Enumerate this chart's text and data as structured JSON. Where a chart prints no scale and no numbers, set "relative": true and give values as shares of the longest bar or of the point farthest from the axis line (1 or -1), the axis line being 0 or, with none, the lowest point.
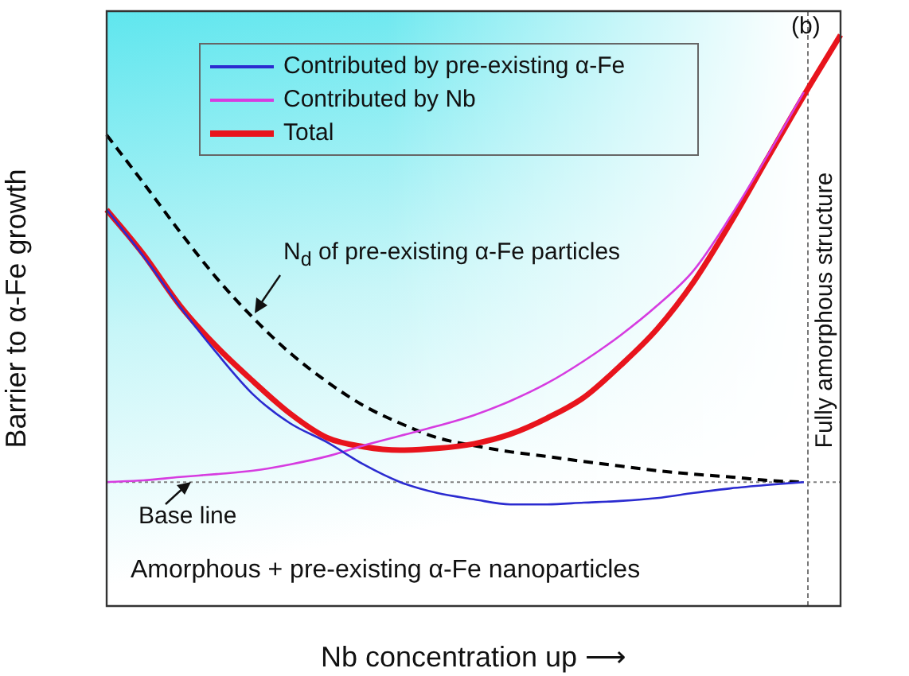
{
  "chart_data": {
    "type": "line",
    "relative": true,
    "xlabel": "Nb concentration up ⟶",
    "ylabel": "Barrier to α-Fe growth",
    "categories": [
      null,
      null,
      null,
      null,
      null,
      null,
      null,
      null,
      null,
      null,
      null,
      null,
      null,
      null,
      null,
      null,
      null,
      null,
      null,
      null,
      null
    ],
    "series": [
      {
        "name": "Contributed by pre-existing α-Fe",
        "color": "#2b2bd0",
        "values": [
          0.694,
          0.613,
          0.524,
          0.443,
          0.37,
          0.32,
          0.287,
          0.248,
          0.217,
          0.198,
          0.187,
          0.178,
          0.178,
          0.181,
          0.184,
          0.189,
          0.198,
          0.206,
          0.212,
          0.217,
          null
        ]
      },
      {
        "name": "Contributed by Nb",
        "color": "#d63ce0",
        "values": [
          0.217,
          0.22,
          0.226,
          0.231,
          0.237,
          0.248,
          0.262,
          0.281,
          0.298,
          0.315,
          0.334,
          0.359,
          0.39,
          0.429,
          0.474,
          0.526,
          0.588,
          0.682,
          0.788,
          0.9,
          null
        ]
      },
      {
        "name": "Total",
        "color": "#e8141c",
        "values": [
          0.694,
          0.616,
          0.526,
          0.454,
          0.393,
          0.337,
          0.295,
          0.279,
          0.273,
          0.276,
          0.284,
          0.301,
          0.329,
          0.365,
          0.421,
          0.485,
          0.568,
          0.671,
          0.783,
          0.894,
          1.0
        ]
      },
      {
        "color": "#000000",
        "line_style": "dashed",
        "values": [
          0.825,
          0.741,
          0.655,
          0.574,
          0.504,
          0.443,
          0.393,
          0.351,
          0.32,
          0.295,
          0.281,
          0.27,
          0.262,
          0.253,
          0.245,
          0.237,
          0.231,
          0.226,
          0.22,
          0.217,
          null
        ]
      }
    ],
    "ref_lines": [
      {
        "axis": "y",
        "value": 0.217,
        "label": "Base line",
        "color": "#808080",
        "line_style": "dotted"
      }
    ],
    "annotations": [
      "(b)",
      "N$_{d}$ of pre-existing α-Fe particles",
      "Amorphous + pre-existing α-Fe nanoparticles",
      "Fully amorphous structure"
    ],
    "legend": "top left",
    "marker": "none",
    "grid": false
  }
}
